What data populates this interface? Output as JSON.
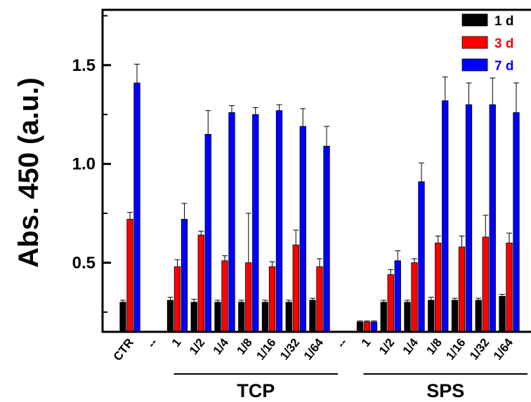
{
  "chart_data": {
    "type": "bar",
    "ylabel": "Abs. 450 (a.u.)",
    "xlabel": "",
    "ylim": [
      0.15,
      1.78
    ],
    "yticks": [
      "0.5",
      "1.0",
      "1.5"
    ],
    "ytick_values": [
      0.5,
      1.0,
      1.5
    ],
    "grid": false,
    "legend_position": "top-right",
    "categories": [
      "CTR",
      "--",
      "1",
      "1/2",
      "1/4",
      "1/8",
      "1/16",
      "1/32",
      "1/64",
      "--",
      "1",
      "1/2",
      "1/4",
      "1/8",
      "1/16",
      "1/32",
      "1/64"
    ],
    "groups": [
      {
        "label": "TCP",
        "from": 2,
        "to": 8
      },
      {
        "label": "SPS",
        "from": 10,
        "to": 16
      }
    ],
    "series": [
      {
        "name": "1 d",
        "color": "#000000",
        "values": [
          0.3,
          null,
          0.31,
          0.3,
          0.3,
          0.3,
          0.3,
          0.3,
          0.31,
          null,
          0.2,
          0.3,
          0.3,
          0.31,
          0.31,
          0.31,
          0.33
        ],
        "errors": [
          0.01,
          null,
          0.015,
          0.015,
          0.01,
          0.01,
          0.01,
          0.01,
          0.01,
          null,
          0.005,
          0.01,
          0.01,
          0.015,
          0.01,
          0.01,
          0.01
        ]
      },
      {
        "name": "3 d",
        "color": "#ff0000",
        "values": [
          0.72,
          null,
          0.48,
          0.64,
          0.51,
          0.5,
          0.48,
          0.59,
          0.48,
          null,
          0.2,
          0.44,
          0.5,
          0.6,
          0.58,
          0.63,
          0.6
        ],
        "errors": [
          0.035,
          null,
          0.035,
          0.02,
          0.025,
          0.25,
          0.025,
          0.075,
          0.04,
          null,
          0.005,
          0.025,
          0.02,
          0.035,
          0.055,
          0.11,
          0.05
        ]
      },
      {
        "name": "7 d",
        "color": "#0000ff",
        "values": [
          1.41,
          null,
          0.72,
          1.15,
          1.26,
          1.25,
          1.27,
          1.19,
          1.09,
          null,
          0.2,
          0.51,
          0.91,
          1.32,
          1.3,
          1.3,
          1.26
        ],
        "errors": [
          0.095,
          null,
          0.08,
          0.12,
          0.035,
          0.035,
          0.03,
          0.09,
          0.1,
          null,
          0.005,
          0.05,
          0.095,
          0.12,
          0.11,
          0.135,
          0.15
        ]
      }
    ]
  }
}
